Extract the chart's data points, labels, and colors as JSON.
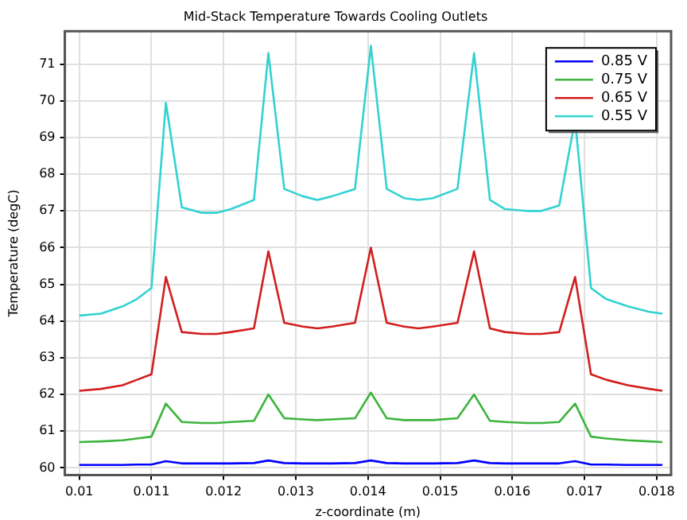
{
  "chart_data": {
    "type": "line",
    "title": "Mid-Stack Temperature Towards Cooling Outlets",
    "xlabel": "z-coordinate (m)",
    "ylabel": "Temperature (degC)",
    "x": [
      0.01,
      0.0103,
      0.0106,
      0.0108,
      0.011,
      0.0112,
      0.01142,
      0.0117,
      0.0119,
      0.0121,
      0.01242,
      0.01262,
      0.01284,
      0.0131,
      0.0133,
      0.0135,
      0.01382,
      0.01404,
      0.01426,
      0.0145,
      0.0147,
      0.0149,
      0.01524,
      0.01547,
      0.01569,
      0.0159,
      0.0162,
      0.0164,
      0.01665,
      0.01687,
      0.01709,
      0.0173,
      0.0176,
      0.0179,
      0.01808
    ],
    "series": [
      {
        "name": "0.85 V",
        "color": "#0000ff",
        "values": [
          60.08,
          60.08,
          60.08,
          60.09,
          60.09,
          60.18,
          60.12,
          60.12,
          60.12,
          60.12,
          60.13,
          60.2,
          60.13,
          60.12,
          60.12,
          60.12,
          60.13,
          60.2,
          60.13,
          60.12,
          60.12,
          60.12,
          60.13,
          60.2,
          60.13,
          60.12,
          60.12,
          60.12,
          60.12,
          60.18,
          60.09,
          60.09,
          60.08,
          60.08,
          60.08
        ]
      },
      {
        "name": "0.75 V",
        "color": "#3cb43c",
        "values": [
          60.7,
          60.72,
          60.75,
          60.8,
          60.85,
          61.75,
          61.25,
          61.22,
          61.22,
          61.25,
          61.28,
          62.0,
          61.35,
          61.32,
          61.3,
          61.32,
          61.35,
          62.05,
          61.35,
          61.3,
          61.3,
          61.3,
          61.35,
          62.0,
          61.28,
          61.25,
          61.22,
          61.22,
          61.25,
          61.75,
          60.85,
          60.8,
          60.75,
          60.72,
          60.7
        ]
      },
      {
        "name": "0.65 V",
        "color": "#d21e1e",
        "values": [
          62.1,
          62.15,
          62.25,
          62.4,
          62.55,
          65.2,
          63.7,
          63.65,
          63.65,
          63.7,
          63.8,
          65.9,
          63.95,
          63.85,
          63.8,
          63.85,
          63.95,
          66.0,
          63.95,
          63.85,
          63.8,
          63.85,
          63.95,
          65.9,
          63.8,
          63.7,
          63.65,
          63.65,
          63.7,
          65.2,
          62.55,
          62.4,
          62.25,
          62.15,
          62.1
        ]
      },
      {
        "name": "0.55 V",
        "color": "#32d2d2",
        "values": [
          64.15,
          64.2,
          64.4,
          64.6,
          64.9,
          69.95,
          67.1,
          66.95,
          66.95,
          67.05,
          67.3,
          71.3,
          67.6,
          67.4,
          67.3,
          67.4,
          67.6,
          71.5,
          67.6,
          67.35,
          67.3,
          67.35,
          67.6,
          71.3,
          67.3,
          67.05,
          67.0,
          67.0,
          67.15,
          69.5,
          64.9,
          64.6,
          64.4,
          64.25,
          64.2
        ]
      }
    ],
    "xlim": [
      0.0098,
      0.0182
    ],
    "xticks": [
      0.01,
      0.011,
      0.012,
      0.013,
      0.014,
      0.015,
      0.016,
      0.017,
      0.018
    ],
    "ylim": [
      59.8,
      71.9
    ],
    "yticks": [
      60,
      61,
      62,
      63,
      64,
      65,
      66,
      67,
      68,
      69,
      70,
      71
    ],
    "grid": true,
    "legend": "top right",
    "marker": "none",
    "line_style": "solid"
  }
}
